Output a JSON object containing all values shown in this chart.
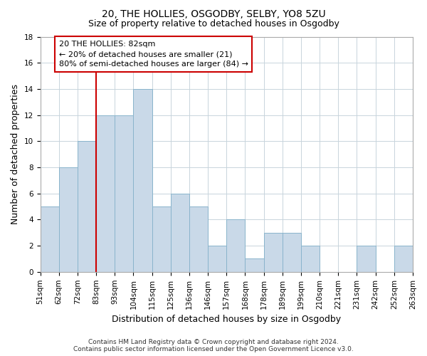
{
  "title": "20, THE HOLLIES, OSGODBY, SELBY, YO8 5ZU",
  "subtitle": "Size of property relative to detached houses in Osgodby",
  "xlabel": "Distribution of detached houses by size in Osgodby",
  "ylabel": "Number of detached properties",
  "bar_values": [
    5,
    8,
    10,
    12,
    12,
    14,
    5,
    6,
    5,
    2,
    4,
    1,
    3,
    3,
    2,
    0,
    0,
    2,
    0,
    2
  ],
  "bar_labels": [
    "51sqm",
    "62sqm",
    "72sqm",
    "83sqm",
    "93sqm",
    "104sqm",
    "115sqm",
    "125sqm",
    "136sqm",
    "146sqm",
    "157sqm",
    "168sqm",
    "178sqm",
    "189sqm",
    "199sqm",
    "210sqm",
    "221sqm",
    "231sqm",
    "242sqm",
    "252sqm",
    "263sqm"
  ],
  "bar_color": "#c9d9e8",
  "bar_edge_color": "#8ab4cc",
  "grid_color": "#c8d4dc",
  "vline_index": 3,
  "vline_color": "#cc0000",
  "annotation_text": "20 THE HOLLIES: 82sqm\n← 20% of detached houses are smaller (21)\n80% of semi-detached houses are larger (84) →",
  "annotation_box_color": "#ffffff",
  "annotation_box_edge": "#cc0000",
  "ylim": [
    0,
    18
  ],
  "yticks": [
    0,
    2,
    4,
    6,
    8,
    10,
    12,
    14,
    16,
    18
  ],
  "footer_line1": "Contains HM Land Registry data © Crown copyright and database right 2024.",
  "footer_line2": "Contains public sector information licensed under the Open Government Licence v3.0.",
  "background_color": "#ffffff",
  "title_fontsize": 10,
  "subtitle_fontsize": 9,
  "ylabel_fontsize": 9,
  "xlabel_fontsize": 9,
  "tick_fontsize": 7.5,
  "annotation_fontsize": 8,
  "footer_fontsize": 6.5
}
